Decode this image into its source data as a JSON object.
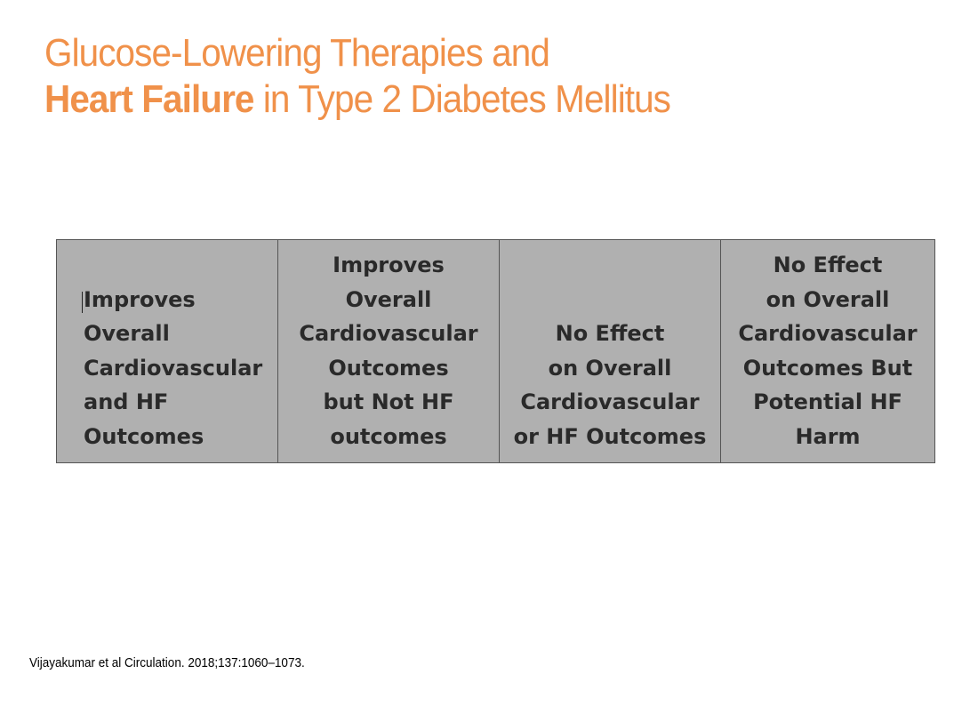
{
  "title": {
    "line1": "Glucose-Lowering Therapies and",
    "line2_bold": "Heart Failure",
    "line2_rest": " in Type 2 Diabetes Mellitus"
  },
  "table": {
    "columns": [
      "Improves\nOverall\nCardiovascular\nand HF\nOutcomes",
      "Improves\nOverall\nCardiovascular\nOutcomes\nbut Not HF\noutcomes",
      "No Effect\non Overall\nCardiovascular\nor HF Outcomes",
      "No Effect\non Overall\nCardiovascular\nOutcomes But\nPotential HF\nHarm"
    ]
  },
  "citation": "Vijayakumar et al Circulation. 2018;137:1060–1073.",
  "colors": {
    "title": "#F0914A",
    "table_fill": "#B0B0B0",
    "table_text": "#2a2a2a"
  }
}
